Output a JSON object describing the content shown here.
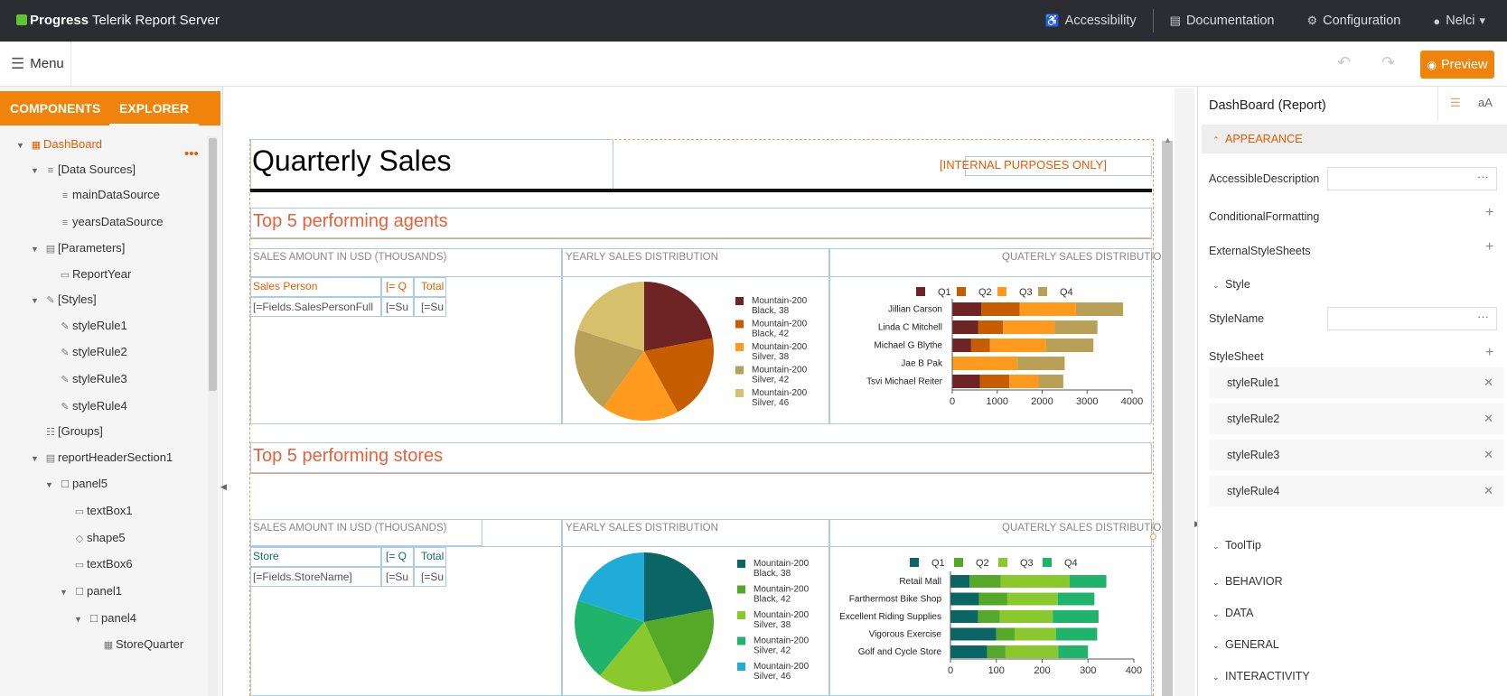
{
  "topbar": {
    "brand_bold": "Progress",
    "brand_rest": "Telerik Report Server",
    "nav": [
      {
        "label": "Accessibility",
        "icon": "accessibility-icon"
      },
      {
        "label": "Documentation",
        "icon": "document-icon"
      },
      {
        "label": "Configuration",
        "icon": "gear-icon"
      },
      {
        "label": "Nelci",
        "icon": "user-icon"
      }
    ]
  },
  "toolbar": {
    "menu_label": "Menu",
    "preview_label": "Preview"
  },
  "left_panel": {
    "tabs": [
      "COMPONENTS",
      "EXPLORER"
    ],
    "active_tab": "EXPLORER",
    "tree": [
      {
        "label": "DashBoard",
        "level": 0,
        "selected": true
      },
      {
        "label": "[Data Sources]",
        "level": 1
      },
      {
        "label": "mainDataSource",
        "level": 2
      },
      {
        "label": "yearsDataSource",
        "level": 2
      },
      {
        "label": "[Parameters]",
        "level": 1
      },
      {
        "label": "ReportYear",
        "level": 2
      },
      {
        "label": "[Styles]",
        "level": 1
      },
      {
        "label": "styleRule1",
        "level": 2
      },
      {
        "label": "styleRule2",
        "level": 2
      },
      {
        "label": "styleRule3",
        "level": 2
      },
      {
        "label": "styleRule4",
        "level": 2
      },
      {
        "label": "[Groups]",
        "level": 1
      },
      {
        "label": "reportHeaderSection1",
        "level": 1
      },
      {
        "label": "panel5",
        "level": 2
      },
      {
        "label": "textBox1",
        "level": 3
      },
      {
        "label": "shape5",
        "level": 3
      },
      {
        "label": "textBox6",
        "level": 3
      },
      {
        "label": "panel1",
        "level": 3
      },
      {
        "label": "panel4",
        "level": 4
      },
      {
        "label": "StoreQuarter",
        "level": 5
      }
    ]
  },
  "report": {
    "title": "Quarterly Sales",
    "internal": "[INTERNAL PURPOSES ONLY]",
    "section1": {
      "heading": "Top 5 performing agents",
      "hdr_sales": "SALES AMOUNT IN USD (THOUSANDS)",
      "hdr_yearly": "YEARLY SALES DISTRIBUTION",
      "hdr_quarterly": "QUATERLY SALES DISTRIBUTION",
      "col1": "Sales Person",
      "col2": "[= Q",
      "col3": "Total",
      "row1": "[=Fields.SalesPersonFull",
      "row2": "[=Su",
      "row3": "[=Su"
    },
    "section2": {
      "heading": "Top 5 performing stores",
      "hdr_sales": "SALES AMOUNT IN USD (THOUSANDS)",
      "hdr_yearly": "YEARLY SALES DISTRIBUTION",
      "hdr_quarterly": "QUATERLY SALES DISTRIBUTION",
      "col1": "Store",
      "col2": "[= Q",
      "col3": "Total",
      "row1": "[=Fields.StoreName]",
      "row2": "[=Su",
      "row3": "[=Su"
    }
  },
  "chart_data": [
    {
      "type": "pie",
      "title": "Yearly Sales Distribution (agents)",
      "labels": [
        "Mountain-200 Black, 38",
        "Mountain-200 Black, 42",
        "Mountain-200 Silver, 38",
        "Mountain-200 Silver, 42",
        "Mountain-200 Silver, 46"
      ],
      "values": [
        22,
        20,
        18,
        20,
        20
      ],
      "colors": [
        "#6e2424",
        "#c65d00",
        "#ff9a1e",
        "#b8a057",
        "#d6c06c"
      ]
    },
    {
      "type": "bar",
      "orientation": "horizontal",
      "stacked": true,
      "title": "Quaterly Sales Distribution (agents)",
      "categories": [
        "Jillian  Carson",
        "Linda C Mitchell",
        "Michael G Blythe",
        "Jae B Pak",
        "Tsvi Michael Reiter"
      ],
      "series": [
        {
          "name": "Q1",
          "values": [
            650,
            580,
            420,
            0,
            620
          ],
          "color": "#6e2424"
        },
        {
          "name": "Q2",
          "values": [
            850,
            550,
            420,
            0,
            650
          ],
          "color": "#c65d00"
        },
        {
          "name": "Q3",
          "values": [
            1250,
            1150,
            1250,
            1450,
            650
          ],
          "color": "#ff9a1e"
        },
        {
          "name": "Q4",
          "values": [
            1050,
            950,
            1050,
            1050,
            550
          ],
          "color": "#b8a057"
        }
      ],
      "xticks": [
        "0",
        "1000",
        "2000",
        "3000",
        "4000"
      ],
      "xlim": [
        0,
        4000
      ]
    },
    {
      "type": "pie",
      "title": "Yearly Sales Distribution (stores)",
      "labels": [
        "Mountain-200 Black, 38",
        "Mountain-200 Black, 42",
        "Mountain-200 Silver, 38",
        "Mountain-200 Silver, 42",
        "Mountain-200 Silver, 46"
      ],
      "values": [
        22,
        21,
        18,
        19,
        20
      ],
      "colors": [
        "#0b6564",
        "#56a928",
        "#8ac92e",
        "#1fb36b",
        "#1fadd8"
      ]
    },
    {
      "type": "bar",
      "orientation": "horizontal",
      "stacked": true,
      "title": "Quaterly Sales Distribution (stores)",
      "categories": [
        "Retail Mall",
        "Farthermost Bike Shop",
        "Excellent Riding Supplies",
        "Vigorous Exercise",
        "Golf and Cycle Store"
      ],
      "series": [
        {
          "name": "Q1",
          "values": [
            42,
            62,
            60,
            100,
            80
          ],
          "color": "#0b6564"
        },
        {
          "name": "Q2",
          "values": [
            68,
            62,
            48,
            40,
            40
          ],
          "color": "#56a928"
        },
        {
          "name": "Q3",
          "values": [
            150,
            110,
            115,
            90,
            115
          ],
          "color": "#8ac92e"
        },
        {
          "name": "Q4",
          "values": [
            80,
            80,
            100,
            90,
            65
          ],
          "color": "#1fb36b"
        }
      ],
      "xticks": [
        "0",
        "100",
        "200",
        "300",
        "400"
      ],
      "xlim": [
        0,
        400
      ]
    }
  ],
  "properties": {
    "title": "DashBoard (Report)",
    "tool_list": "☰",
    "tool_font": "aA",
    "appearance": "APPEARANCE",
    "accessible_description": "AccessibleDescription",
    "conditional_formatting": "ConditionalFormatting",
    "external_style_sheets": "ExternalStyleSheets",
    "style": "Style",
    "style_name": "StyleName",
    "style_sheet": "StyleSheet",
    "rules": [
      "styleRule1",
      "styleRule2",
      "styleRule3",
      "styleRule4"
    ],
    "tooltip": "ToolTip",
    "categories": [
      "BEHAVIOR",
      "DATA",
      "GENERAL",
      "INTERACTIVITY"
    ]
  }
}
